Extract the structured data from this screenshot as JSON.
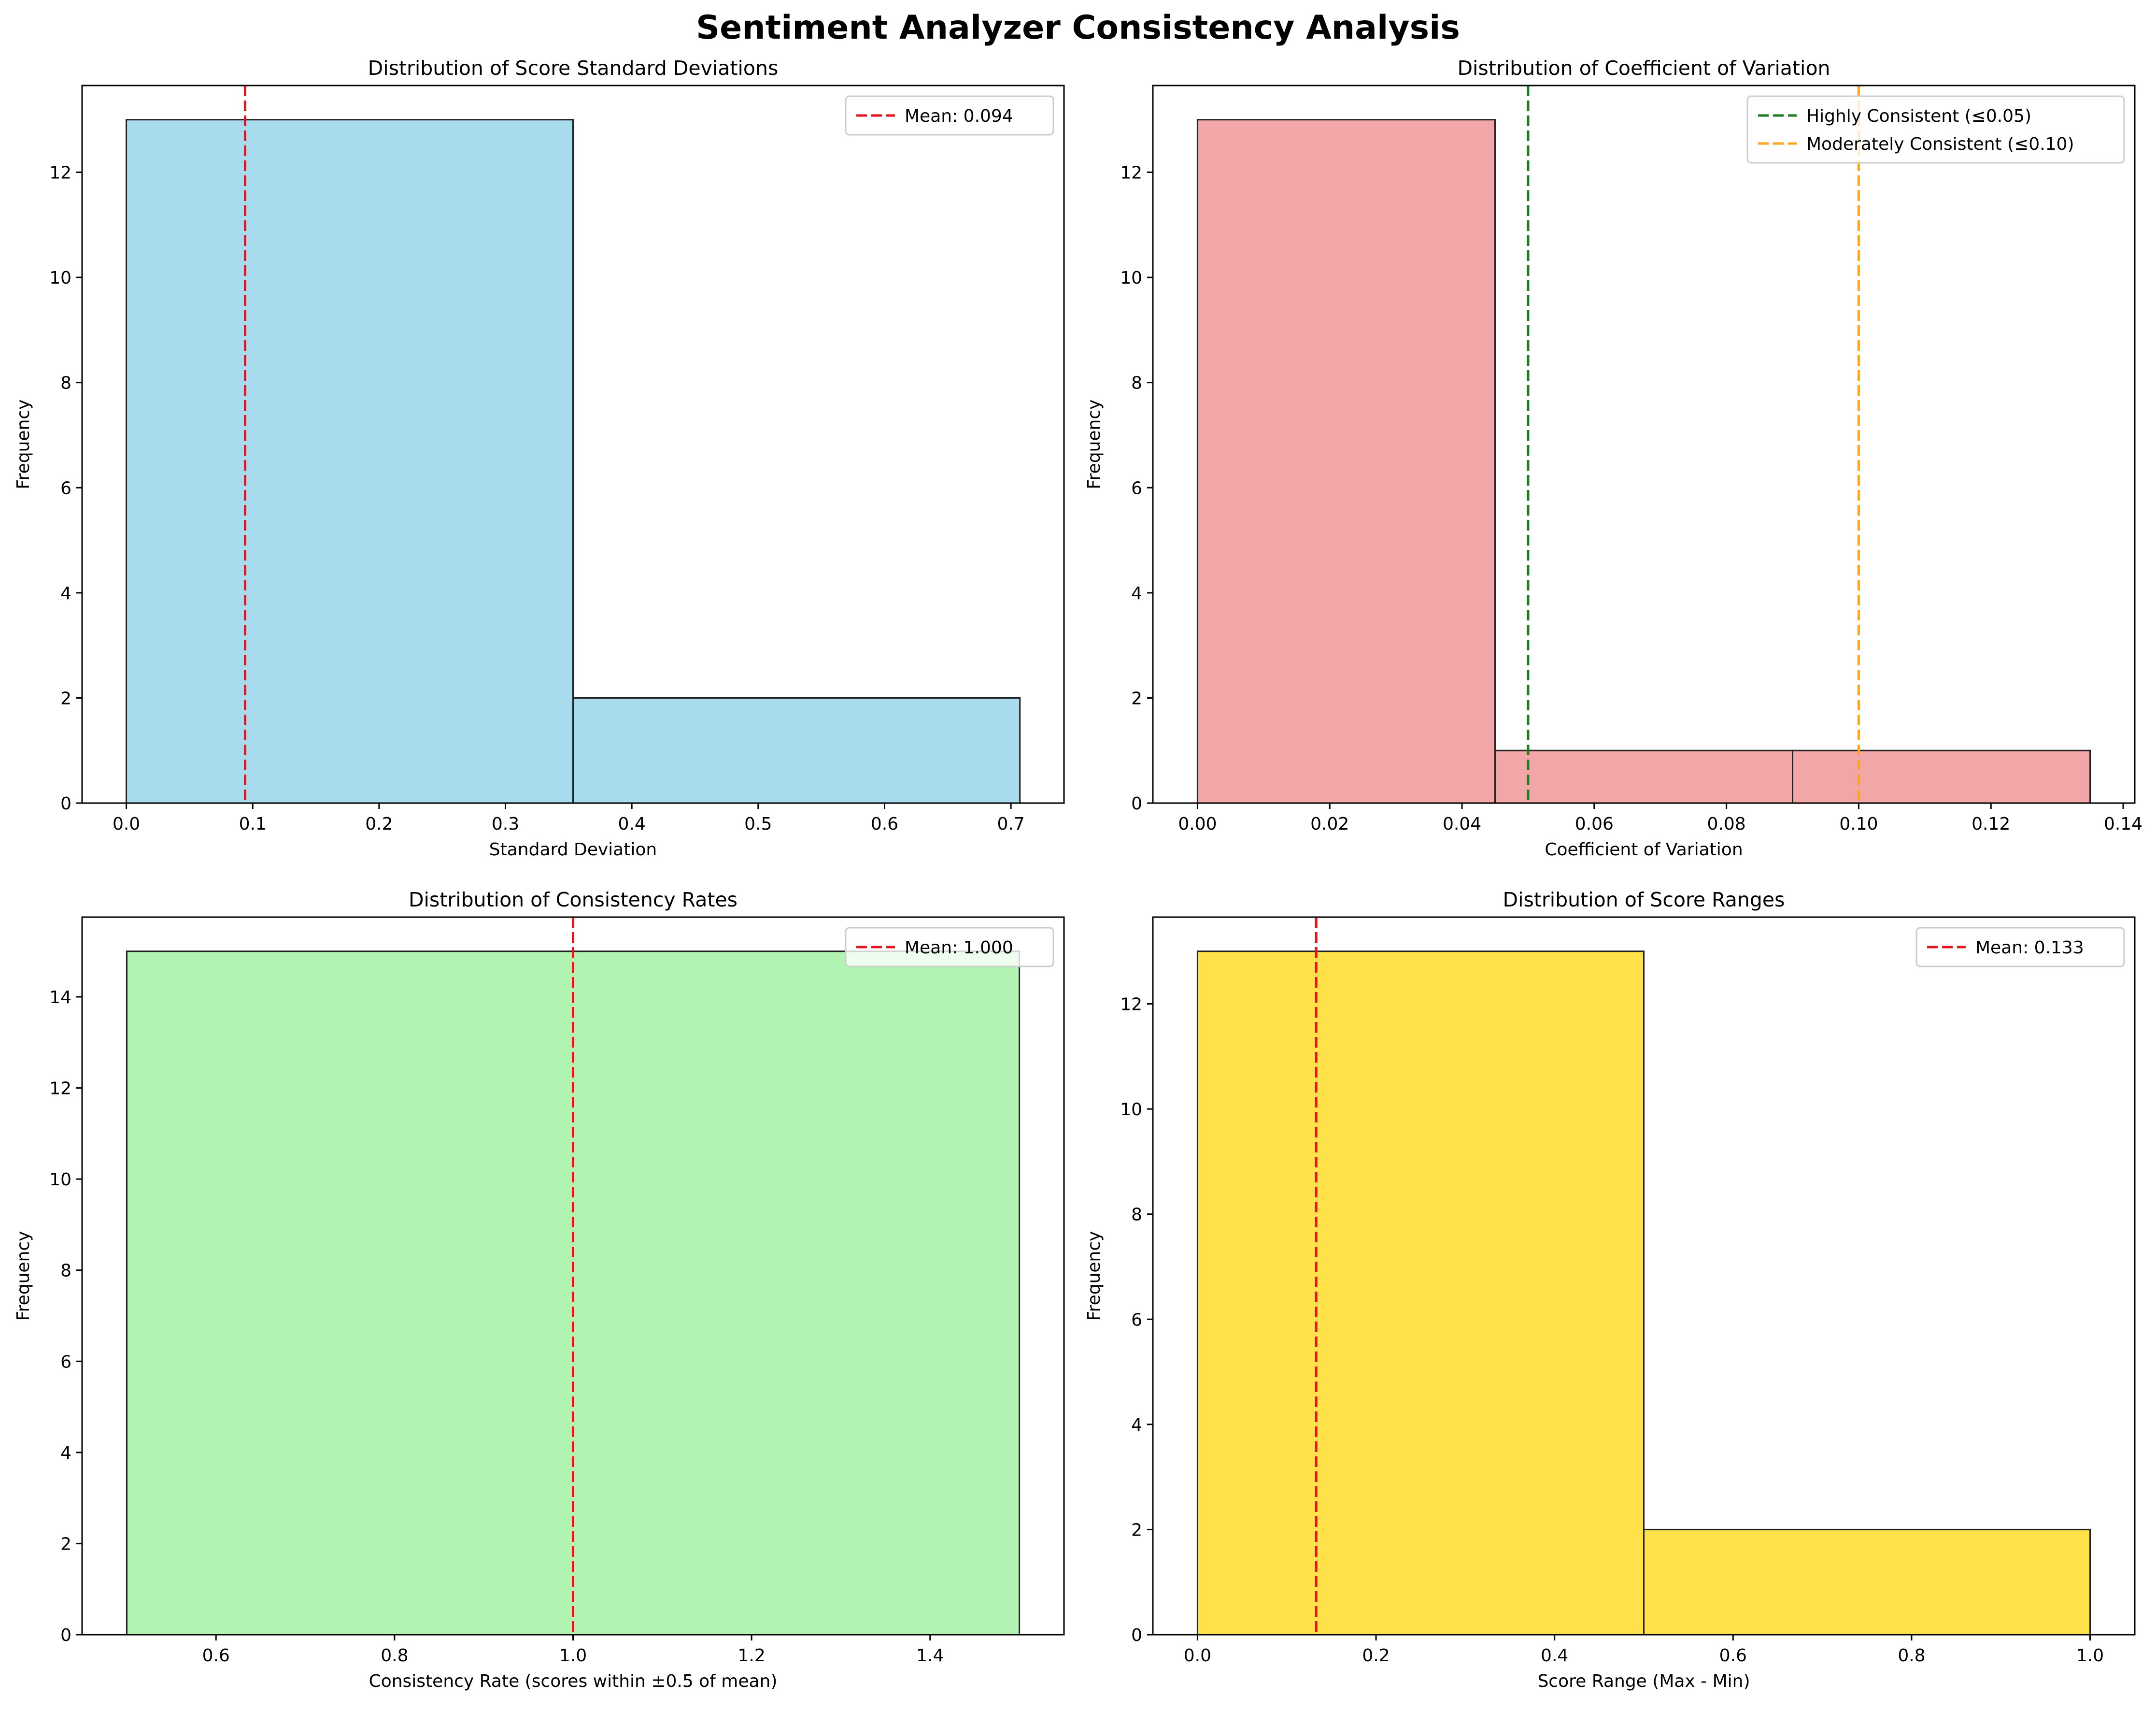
{
  "suptitle": "Sentiment Analyzer Consistency Analysis",
  "chart_data": [
    {
      "type": "bar",
      "title": "Distribution of Score Standard Deviations",
      "xlabel": "Standard Deviation",
      "ylabel": "Frequency",
      "xlim": [
        -0.035,
        0.742
      ],
      "ylim": [
        0,
        13.65
      ],
      "xticks": [
        0.0,
        0.1,
        0.2,
        0.3,
        0.4,
        0.5,
        0.6,
        0.7
      ],
      "xtick_labels": [
        "0.0",
        "0.1",
        "0.2",
        "0.3",
        "0.4",
        "0.5",
        "0.6",
        "0.7"
      ],
      "yticks": [
        0,
        2,
        4,
        6,
        8,
        10,
        12
      ],
      "ytick_labels": [
        "0",
        "2",
        "4",
        "6",
        "8",
        "10",
        "12"
      ],
      "bins": [
        {
          "x0": 0.0,
          "x1": 0.3535,
          "count": 13
        },
        {
          "x0": 0.3535,
          "x1": 0.7071,
          "count": 2
        }
      ],
      "bar_color": "#a9dbee",
      "vlines": [
        {
          "x": 0.094,
          "color": "#e8141c",
          "label": "Mean: 0.094"
        }
      ],
      "legend_position": "upper-right"
    },
    {
      "type": "bar",
      "title": "Distribution of Coefficient of Variation",
      "xlabel": "Coefficient of Variation",
      "ylabel": "Frequency",
      "xlim": [
        -0.00675,
        0.14175
      ],
      "ylim": [
        0,
        13.65
      ],
      "xticks": [
        0.0,
        0.02,
        0.04,
        0.06,
        0.08,
        0.1,
        0.12,
        0.14
      ],
      "xtick_labels": [
        "0.00",
        "0.02",
        "0.04",
        "0.06",
        "0.08",
        "0.10",
        "0.12",
        "0.14"
      ],
      "yticks": [
        0,
        2,
        4,
        6,
        8,
        10,
        12
      ],
      "ytick_labels": [
        "0",
        "2",
        "4",
        "6",
        "8",
        "10",
        "12"
      ],
      "bins": [
        {
          "x0": 0.0,
          "x1": 0.045,
          "count": 13
        },
        {
          "x0": 0.045,
          "x1": 0.09,
          "count": 1
        },
        {
          "x0": 0.09,
          "x1": 0.135,
          "count": 1
        }
      ],
      "bar_color": "#f3a6a7",
      "vlines": [
        {
          "x": 0.05,
          "color": "#1a7f1a",
          "label": "Highly Consistent (≤0.05)"
        },
        {
          "x": 0.1,
          "color": "#ffa51c",
          "label": "Moderately Consistent (≤0.10)"
        }
      ],
      "legend_position": "upper-right"
    },
    {
      "type": "bar",
      "title": "Distribution of Consistency Rates",
      "xlabel": "Consistency Rate (scores within ±0.5 of mean)",
      "ylabel": "Frequency",
      "xlim": [
        0.45,
        1.55
      ],
      "ylim": [
        0,
        15.75
      ],
      "xticks": [
        0.6,
        0.8,
        1.0,
        1.2,
        1.4
      ],
      "xtick_labels": [
        "0.6",
        "0.8",
        "1.0",
        "1.2",
        "1.4"
      ],
      "yticks": [
        0,
        2,
        4,
        6,
        8,
        10,
        12,
        14
      ],
      "ytick_labels": [
        "0",
        "2",
        "4",
        "6",
        "8",
        "10",
        "12",
        "14"
      ],
      "bins": [
        {
          "x0": 0.5,
          "x1": 1.5,
          "count": 15
        }
      ],
      "bar_color": "#b1f3b0",
      "vlines": [
        {
          "x": 1.0,
          "color": "#e8141c",
          "label": "Mean: 1.000"
        }
      ],
      "legend_position": "upper-right"
    },
    {
      "type": "bar",
      "title": "Distribution of Score Ranges",
      "xlabel": "Score Range (Max - Min)",
      "ylabel": "Frequency",
      "xlim": [
        -0.05,
        1.05
      ],
      "ylim": [
        0,
        13.65
      ],
      "xticks": [
        0.0,
        0.2,
        0.4,
        0.6,
        0.8,
        1.0
      ],
      "xtick_labels": [
        "0.0",
        "0.2",
        "0.4",
        "0.6",
        "0.8",
        "1.0"
      ],
      "yticks": [
        0,
        2,
        4,
        6,
        8,
        10,
        12
      ],
      "ytick_labels": [
        "0",
        "2",
        "4",
        "6",
        "8",
        "10",
        "12"
      ],
      "bins": [
        {
          "x0": 0.0,
          "x1": 0.5,
          "count": 13
        },
        {
          "x0": 0.5,
          "x1": 1.0,
          "count": 2
        }
      ],
      "bar_color": "#ffe14a",
      "vlines": [
        {
          "x": 0.133,
          "color": "#e8141c",
          "label": "Mean: 0.133"
        }
      ],
      "legend_position": "upper-right"
    }
  ]
}
